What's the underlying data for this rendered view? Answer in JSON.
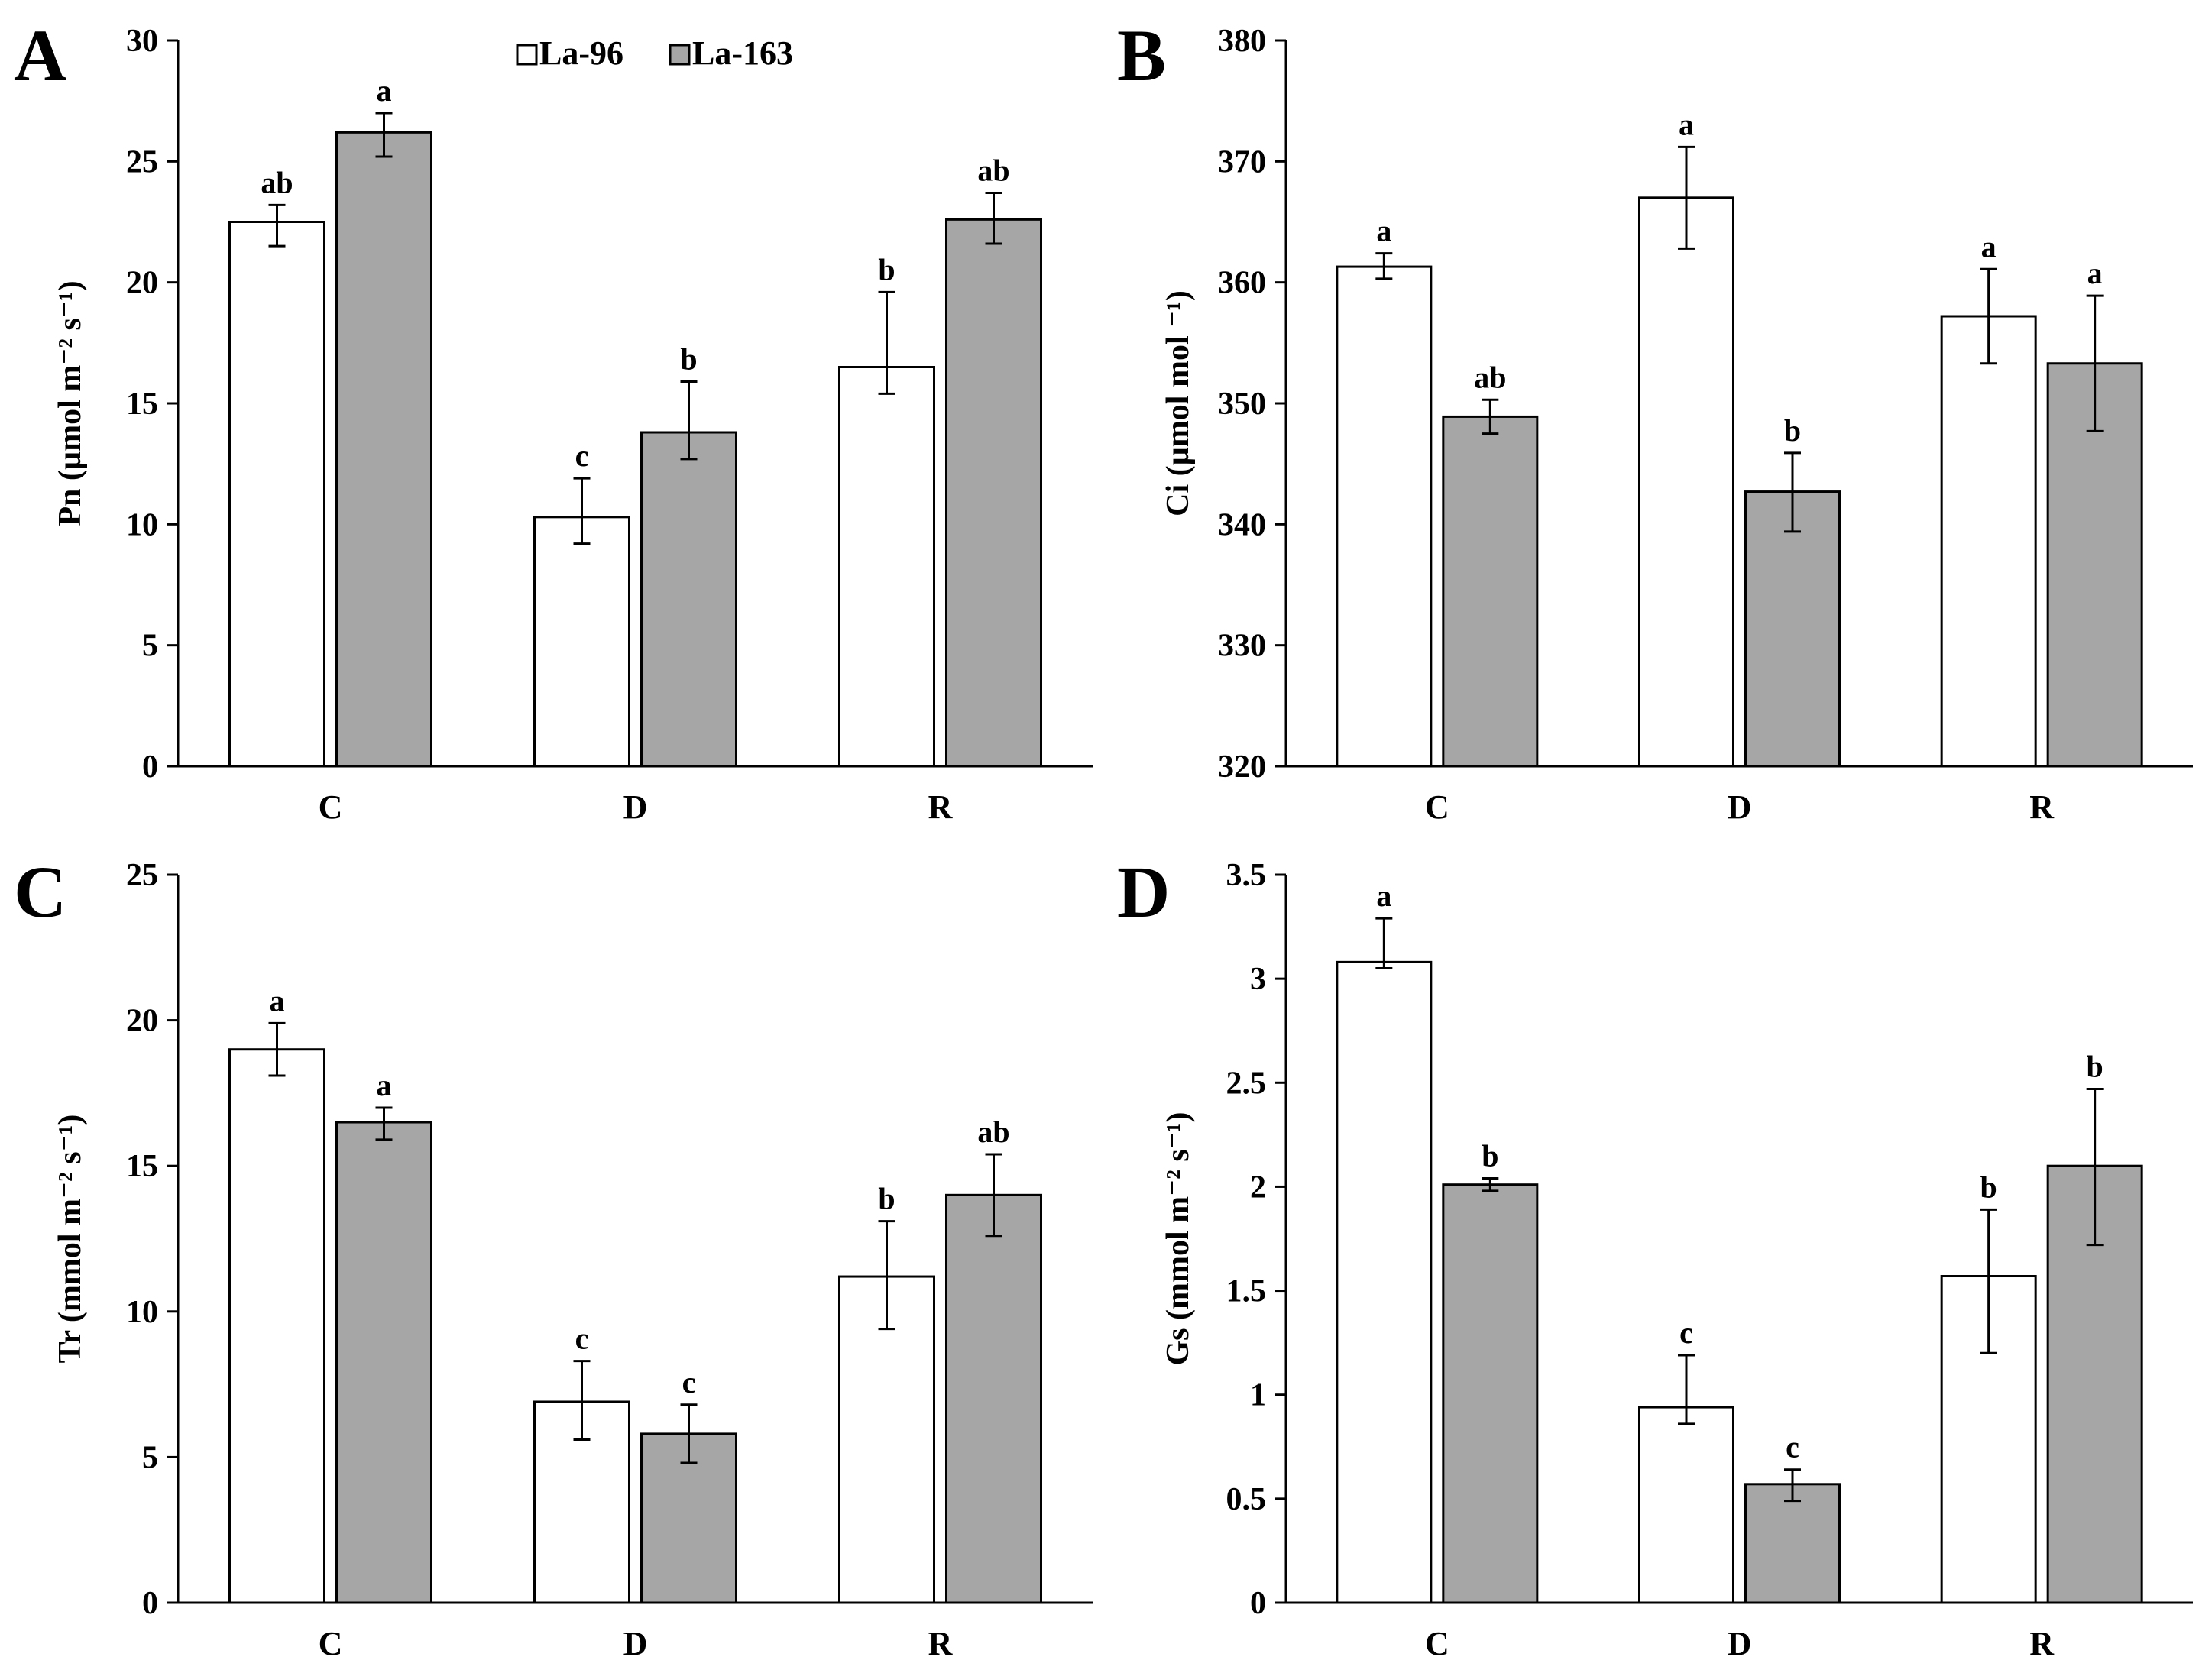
{
  "colors": {
    "la96": "#ffffff",
    "la163": "#a6a6a6",
    "stroke": "#000000"
  },
  "legend": {
    "series1": "La-96",
    "series2": "La-163"
  },
  "chart_data": [
    {
      "panel": "A",
      "type": "bar",
      "categories": [
        "C",
        "D",
        "R"
      ],
      "ylabel": "Pn (µmol m⁻² s⁻¹)",
      "ylim": [
        0,
        30
      ],
      "yticks": [
        "0",
        "5",
        "10",
        "15",
        "20",
        "25",
        "30"
      ],
      "series": [
        {
          "name": "La-96",
          "values": [
            22.5,
            10.3,
            16.5
          ],
          "err_low": [
            21.5,
            9.2,
            15.4
          ],
          "err_high": [
            23.2,
            11.9,
            19.6
          ],
          "labels": [
            "ab",
            "c",
            "b"
          ]
        },
        {
          "name": "La-163",
          "values": [
            26.2,
            13.8,
            22.6
          ],
          "err_low": [
            25.2,
            12.7,
            21.6
          ],
          "err_high": [
            27.0,
            15.9,
            23.7
          ],
          "labels": [
            "a",
            "b",
            "ab"
          ]
        }
      ]
    },
    {
      "panel": "B",
      "type": "bar",
      "categories": [
        "C",
        "D",
        "R"
      ],
      "ylabel": "Ci (µmol mol ⁻¹)",
      "ylim": [
        320,
        380
      ],
      "yticks": [
        "320",
        "330",
        "340",
        "350",
        "360",
        "370",
        "380"
      ],
      "series": [
        {
          "name": "La-96",
          "values": [
            361.3,
            367.0,
            357.2
          ],
          "err_low": [
            360.3,
            362.8,
            353.3
          ],
          "err_high": [
            362.4,
            371.2,
            361.1
          ],
          "labels": [
            "a",
            "a",
            "a"
          ]
        },
        {
          "name": "La-163",
          "values": [
            348.9,
            342.7,
            353.3
          ],
          "err_low": [
            347.5,
            339.4,
            347.7
          ],
          "err_high": [
            350.3,
            345.9,
            358.9
          ],
          "labels": [
            "ab",
            "b",
            "a"
          ]
        }
      ]
    },
    {
      "panel": "C",
      "type": "bar",
      "categories": [
        "C",
        "D",
        "R"
      ],
      "ylabel": "Tr (mmol m⁻² s⁻¹)",
      "ylim": [
        0,
        25
      ],
      "yticks": [
        "0",
        "5",
        "10",
        "15",
        "20",
        "25"
      ],
      "series": [
        {
          "name": "La-96",
          "values": [
            19.0,
            6.9,
            11.2
          ],
          "err_low": [
            18.1,
            5.6,
            9.4
          ],
          "err_high": [
            19.9,
            8.3,
            13.1
          ],
          "labels": [
            "a",
            "c",
            "b"
          ]
        },
        {
          "name": "La-163",
          "values": [
            16.5,
            5.8,
            14.0
          ],
          "err_low": [
            15.9,
            4.8,
            12.6
          ],
          "err_high": [
            17.0,
            6.8,
            15.4
          ],
          "labels": [
            "a",
            "c",
            "ab"
          ]
        }
      ]
    },
    {
      "panel": "D",
      "type": "bar",
      "categories": [
        "C",
        "D",
        "R"
      ],
      "ylabel": "Gs (mmol m⁻² s⁻¹)",
      "ylim": [
        0,
        3.5
      ],
      "yticks": [
        "0",
        "0.5",
        "1",
        "1.5",
        "2",
        "2.5",
        "3",
        "3.5"
      ],
      "series": [
        {
          "name": "La-96",
          "values": [
            3.08,
            0.94,
            1.57
          ],
          "err_low": [
            3.05,
            0.86,
            1.2
          ],
          "err_high": [
            3.29,
            1.19,
            1.89
          ],
          "labels": [
            "a",
            "c",
            "b"
          ]
        },
        {
          "name": "La-163",
          "values": [
            2.01,
            0.57,
            2.1
          ],
          "err_low": [
            1.98,
            0.49,
            1.72
          ],
          "err_high": [
            2.04,
            0.64,
            2.47
          ],
          "labels": [
            "b",
            "c",
            "b"
          ]
        }
      ]
    }
  ]
}
